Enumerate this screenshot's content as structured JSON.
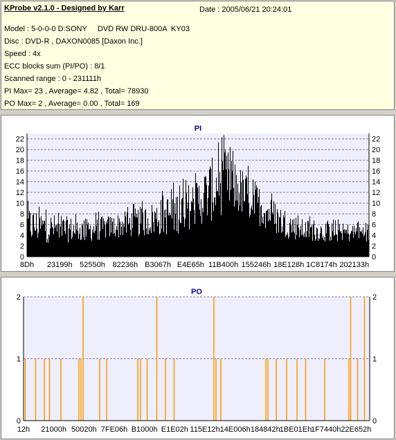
{
  "header": {
    "title": "KProbe v2.1.0 - Designed by Karr",
    "date": "Date : 2005/06/21 20:24:01",
    "model": "Model : 5-0-0-0 D:SONY     DVD RW DRU-800A  KY03",
    "disc": "Disc : DVD-R , DAXON0085 [Daxon Inc.]",
    "speed": "Speed : 4x",
    "ecc": "ECC blocks sum (PI/PO) : 8/1",
    "range": "Scanned range : 0 - 231111h",
    "pi_stats": "PI Max= 23 , Average= 4.82 , Total= 78930",
    "po_stats": "PO Max= 2 , Average= 0.00 , Total= 169"
  },
  "colors": {
    "pi_bar": "#000000",
    "po_bar": "#ff9900",
    "plot_bg": "#eeeefc",
    "grid": "#8080a0",
    "title": "#0000a0"
  },
  "chart_data": [
    {
      "type": "bar",
      "title": "PI",
      "ylim": [
        0,
        23
      ],
      "yticks": [
        0,
        2,
        4,
        6,
        8,
        10,
        12,
        14,
        16,
        18,
        20,
        22
      ],
      "xticks": [
        "8Dh",
        "23199h",
        "52550h",
        "82236h",
        "B3067h",
        "E4E65h",
        "11B400h",
        "155246h",
        "18E128h",
        "1C8174h",
        "202133h"
      ],
      "grid": true,
      "envelope": [
        {
          "x": 0.0,
          "avg": 4.5,
          "peak": 11
        },
        {
          "x": 0.08,
          "avg": 4.2,
          "peak": 9
        },
        {
          "x": 0.17,
          "avg": 4.0,
          "peak": 8
        },
        {
          "x": 0.26,
          "avg": 4.8,
          "peak": 9
        },
        {
          "x": 0.35,
          "avg": 5.5,
          "peak": 11
        },
        {
          "x": 0.43,
          "avg": 6.5,
          "peak": 14
        },
        {
          "x": 0.5,
          "avg": 8.5,
          "peak": 17
        },
        {
          "x": 0.55,
          "avg": 10.5,
          "peak": 22
        },
        {
          "x": 0.58,
          "avg": 12.0,
          "peak": 23
        },
        {
          "x": 0.62,
          "avg": 10.5,
          "peak": 19
        },
        {
          "x": 0.68,
          "avg": 8.0,
          "peak": 15
        },
        {
          "x": 0.74,
          "avg": 5.5,
          "peak": 11
        },
        {
          "x": 0.8,
          "avg": 4.2,
          "peak": 8
        },
        {
          "x": 0.9,
          "avg": 3.8,
          "peak": 7
        },
        {
          "x": 1.0,
          "avg": 3.8,
          "peak": 7
        }
      ]
    },
    {
      "type": "bar",
      "title": "PO",
      "ylim": [
        0,
        2
      ],
      "yticks": [
        0,
        1,
        2
      ],
      "xticks": [
        "12h",
        "21000h",
        "50020h",
        "7FE06h",
        "B1000h",
        "E1E02h",
        "115E12h",
        "14E006h",
        "184842h",
        "1BE01Eh",
        "1F7440h",
        "22E652h"
      ],
      "grid": true,
      "spikes": [
        {
          "x": 0.005,
          "v": 1
        },
        {
          "x": 0.035,
          "v": 1
        },
        {
          "x": 0.06,
          "v": 1
        },
        {
          "x": 0.075,
          "v": 1
        },
        {
          "x": 0.108,
          "v": 1
        },
        {
          "x": 0.16,
          "v": 1
        },
        {
          "x": 0.166,
          "v": 1
        },
        {
          "x": 0.172,
          "v": 2
        },
        {
          "x": 0.22,
          "v": 1
        },
        {
          "x": 0.24,
          "v": 1
        },
        {
          "x": 0.33,
          "v": 1
        },
        {
          "x": 0.338,
          "v": 1
        },
        {
          "x": 0.357,
          "v": 1
        },
        {
          "x": 0.385,
          "v": 2
        },
        {
          "x": 0.41,
          "v": 1
        },
        {
          "x": 0.435,
          "v": 1
        },
        {
          "x": 0.55,
          "v": 2
        },
        {
          "x": 0.556,
          "v": 1
        },
        {
          "x": 0.57,
          "v": 1
        },
        {
          "x": 0.7,
          "v": 1
        },
        {
          "x": 0.706,
          "v": 1
        },
        {
          "x": 0.73,
          "v": 1
        },
        {
          "x": 0.76,
          "v": 1
        },
        {
          "x": 0.79,
          "v": 1
        },
        {
          "x": 0.815,
          "v": 1
        },
        {
          "x": 0.87,
          "v": 1
        },
        {
          "x": 0.94,
          "v": 1
        },
        {
          "x": 0.945,
          "v": 2
        },
        {
          "x": 0.965,
          "v": 1
        },
        {
          "x": 0.985,
          "v": 2
        }
      ]
    }
  ]
}
